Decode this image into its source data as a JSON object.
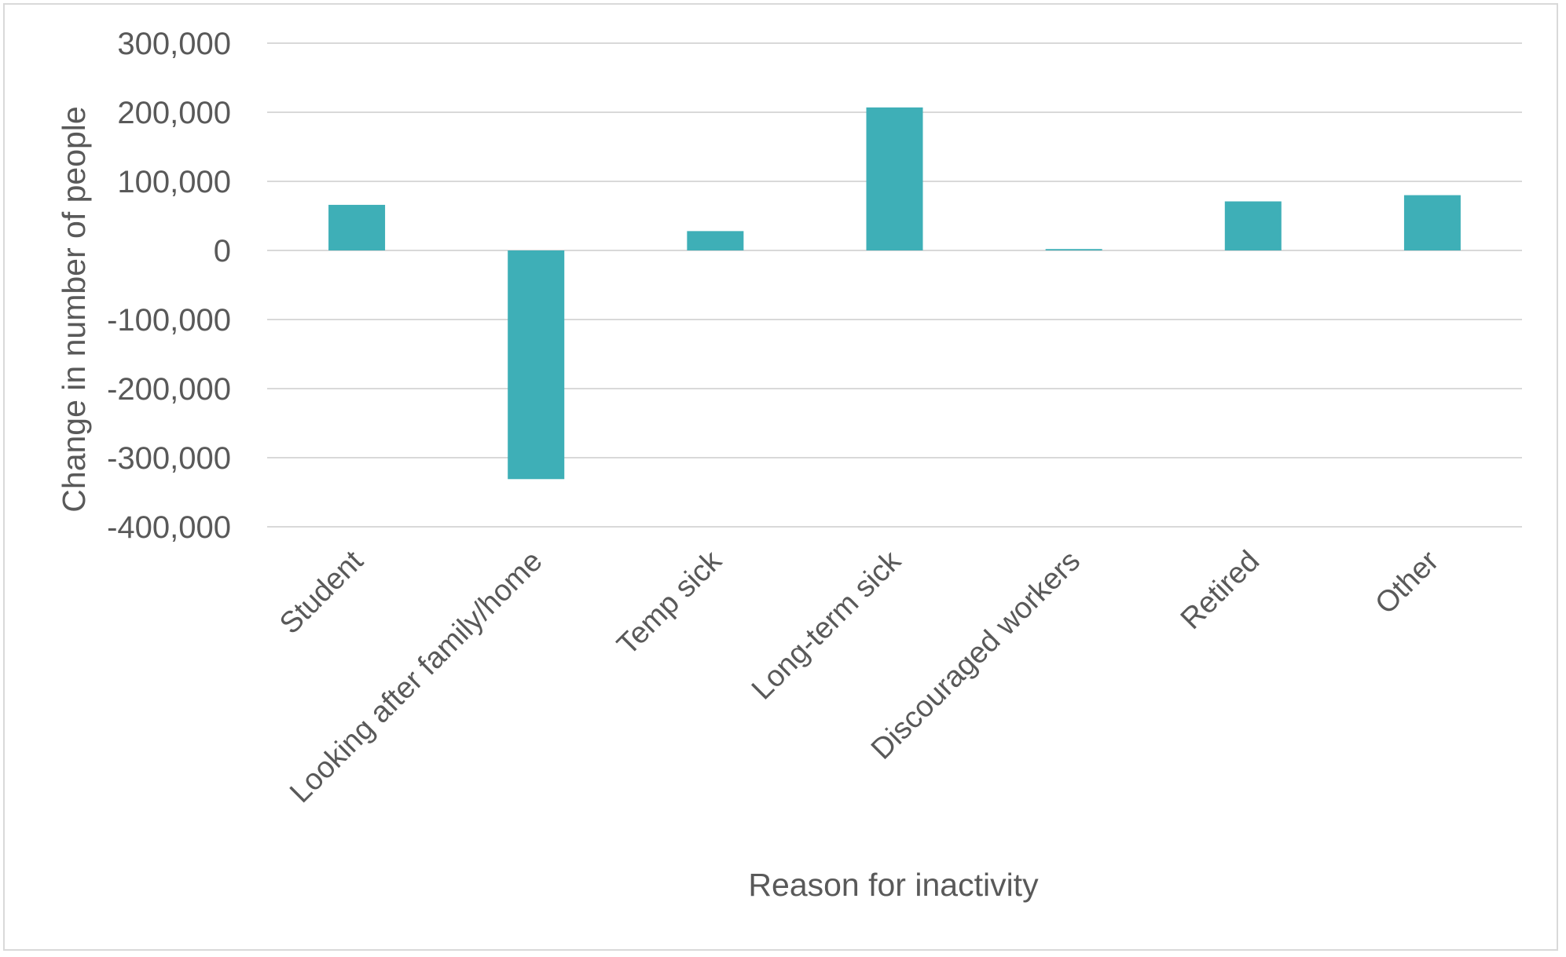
{
  "chart_data": {
    "type": "bar",
    "title": "",
    "xlabel": "Reason for inactivity",
    "ylabel": "Change in number of people",
    "categories": [
      "Student",
      "Looking after family/home",
      "Temp sick",
      "Long-term sick",
      "Discouraged workers",
      "Retired",
      "Other"
    ],
    "values": [
      66000,
      -331000,
      28000,
      207000,
      2000,
      71000,
      80000
    ],
    "ylim": [
      -400000,
      300000
    ],
    "yticks": [
      300000,
      200000,
      100000,
      0,
      -100000,
      -200000,
      -300000,
      -400000
    ],
    "ytick_labels": [
      "300,000",
      "200,000",
      "100,000",
      "0",
      "-100,000",
      "-200,000",
      "-300,000",
      "-400,000"
    ],
    "grid": true,
    "legend": "none",
    "bar_color": "#3eafb7",
    "grid_color": "#d9d9d9"
  }
}
